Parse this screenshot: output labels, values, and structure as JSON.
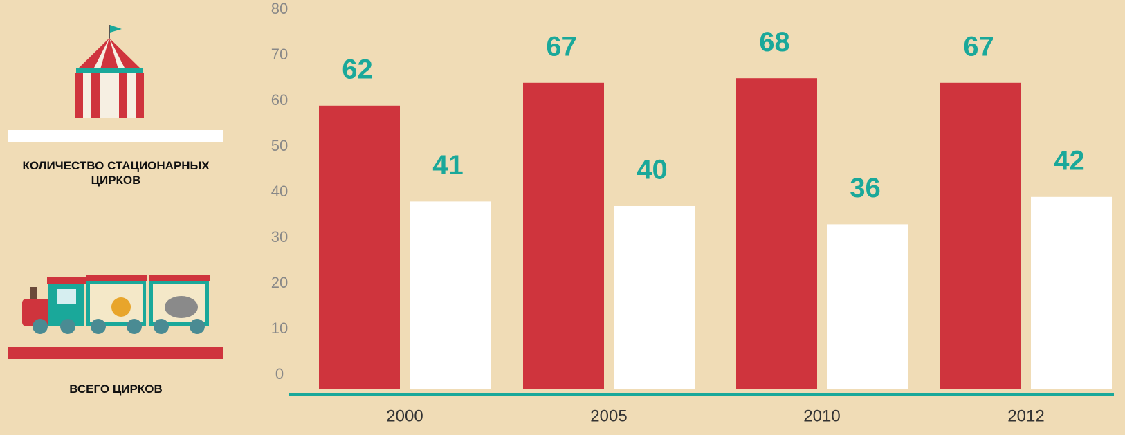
{
  "chart_data": {
    "type": "bar",
    "categories": [
      "2000",
      "2005",
      "2010",
      "2012"
    ],
    "series": [
      {
        "name": "ВСЕГО ЦИРКОВ",
        "color": "#cf343d",
        "values": [
          62,
          67,
          68,
          67
        ]
      },
      {
        "name": "КОЛИЧЕСТВО СТАЦИОНАРНЫХ ЦИРКОВ",
        "color": "#ffffff",
        "values": [
          41,
          40,
          36,
          42
        ]
      }
    ],
    "ylim": [
      0,
      80
    ],
    "yticks": [
      0,
      10,
      20,
      30,
      40,
      50,
      60,
      70,
      80
    ],
    "label_color": "#1aa89a",
    "axis_color": "#1aa89a"
  }
}
